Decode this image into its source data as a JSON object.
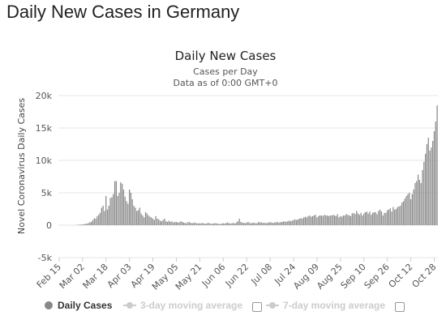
{
  "page_title": "Daily New Cases in Germany",
  "chart_data": {
    "type": "bar",
    "title": "Daily New Cases",
    "subtitle_lines": [
      "Cases per Day",
      "Data as of 0:00 GMT+0"
    ],
    "xlabel": "",
    "ylabel": "Novel Coronavirus Daily Cases",
    "ylim": [
      -5000,
      20000
    ],
    "y_ticks": [
      20000,
      15000,
      10000,
      5000,
      0,
      -5000
    ],
    "y_tick_labels": [
      "20k",
      "15k",
      "10k",
      "5k",
      "0",
      "-5k"
    ],
    "x_tick_labels": [
      "Feb 15",
      "Mar 02",
      "Mar 18",
      "Apr 03",
      "Apr 19",
      "May 05",
      "May 21",
      "Jun 06",
      "Jun 22",
      "Jul 08",
      "Jul 24",
      "Aug 09",
      "Aug 25",
      "Sep 10",
      "Sep 26",
      "Oct 12",
      "Oct 28"
    ],
    "x_tick_day_index": [
      0,
      16,
      32,
      48,
      64,
      80,
      96,
      112,
      128,
      144,
      160,
      176,
      192,
      208,
      224,
      240,
      256
    ],
    "series_name": "Daily Cases",
    "start_label": "Feb 15",
    "day_values": [
      0,
      0,
      0,
      0,
      0,
      0,
      0,
      0,
      0,
      0,
      0,
      10,
      40,
      50,
      80,
      100,
      120,
      150,
      200,
      230,
      330,
      450,
      520,
      780,
      1080,
      1000,
      1400,
      1600,
      1900,
      2700,
      3000,
      2200,
      4500,
      2400,
      3000,
      4200,
      4300,
      4800,
      6800,
      6800,
      4500,
      5000,
      6600,
      6400,
      5500,
      4400,
      3700,
      3300,
      5500,
      5000,
      4000,
      3000,
      2700,
      2200,
      2300,
      2700,
      1800,
      1500,
      1200,
      2000,
      1800,
      1500,
      1300,
      1200,
      1000,
      800,
      1400,
      1000,
      900,
      700,
      600,
      800,
      1000,
      600,
      500,
      700,
      500,
      600,
      400,
      500,
      500,
      400,
      450,
      600,
      500,
      400,
      350,
      300,
      500,
      450,
      350,
      300,
      400,
      350,
      300,
      250,
      300,
      280,
      350,
      250,
      200,
      300,
      350,
      280,
      200,
      250,
      300,
      300,
      250,
      200,
      180,
      250,
      300,
      250,
      350,
      400,
      300,
      250,
      300,
      350,
      250,
      400,
      600,
      1000,
      500,
      400,
      350,
      300,
      400,
      500,
      350,
      300,
      350,
      400,
      300,
      300,
      500,
      400,
      450,
      350,
      400,
      300,
      350,
      400,
      500,
      400,
      350,
      400,
      450,
      500,
      400,
      450,
      500,
      550,
      600,
      500,
      600,
      700,
      600,
      700,
      800,
      900,
      800,
      900,
      1000,
      1100,
      1000,
      1200,
      1300,
      1200,
      1400,
      1500,
      1300,
      1400,
      1500,
      1600,
      1200,
      1400,
      1500,
      1500,
      1400,
      1600,
      1500,
      1500,
      1400,
      1500,
      1500,
      1600,
      1500,
      1400,
      1700,
      1200,
      1400,
      1300,
      1500,
      1500,
      1700,
      1600,
      1500,
      1400,
      1800,
      1900,
      1700,
      2200,
      1800,
      1600,
      1900,
      1500,
      1800,
      2000,
      2100,
      1800,
      2100,
      1600,
      1900,
      2000,
      2000,
      1700,
      2200,
      2400,
      2100,
      1500,
      1900,
      1900,
      2300,
      2400,
      2600,
      2100,
      2800,
      2400,
      2500,
      2800,
      2900,
      3000,
      3500,
      3700,
      4100,
      4500,
      4800,
      5000,
      4000,
      4800,
      5500,
      6500,
      6800,
      7800,
      7000,
      6500,
      8500,
      9800,
      11000,
      12500,
      13500,
      11500,
      12000,
      13000,
      14500,
      16000,
      18500
    ]
  },
  "legend": [
    {
      "label": "Daily Cases",
      "color": "#888888",
      "active": true
    },
    {
      "label": "3-day moving average",
      "color": "#cccccc",
      "active": false
    },
    {
      "label": "7-day moving average",
      "color": "#cccccc",
      "active": false
    }
  ]
}
